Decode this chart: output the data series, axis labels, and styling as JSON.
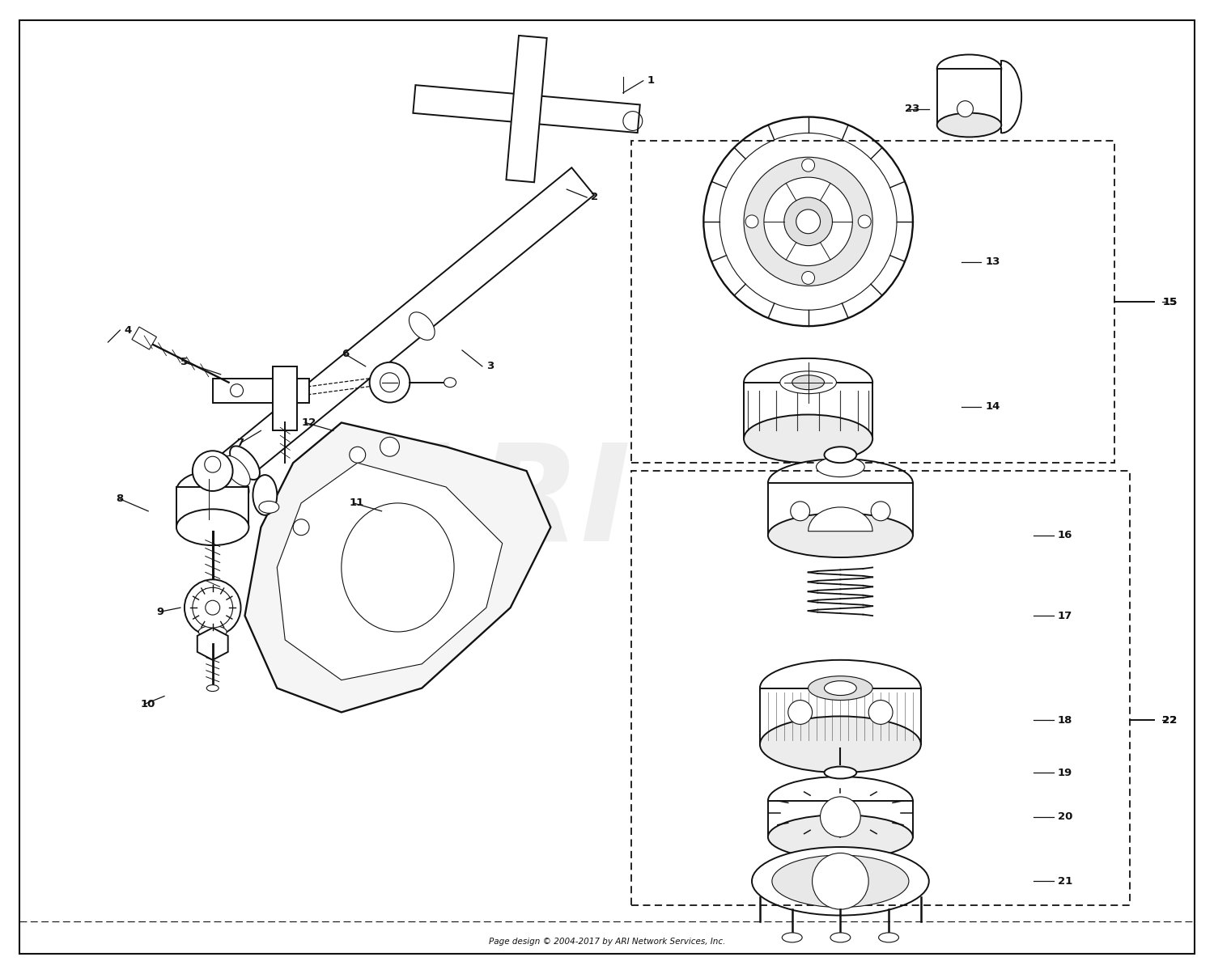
{
  "footer": "Page design © 2004-2017 by ARI Network Services, Inc.",
  "background_color": "#ffffff",
  "line_color": "#111111",
  "watermark_color": "#cccccc",
  "fig_w": 15.0,
  "fig_h": 12.04,
  "dpi": 100
}
